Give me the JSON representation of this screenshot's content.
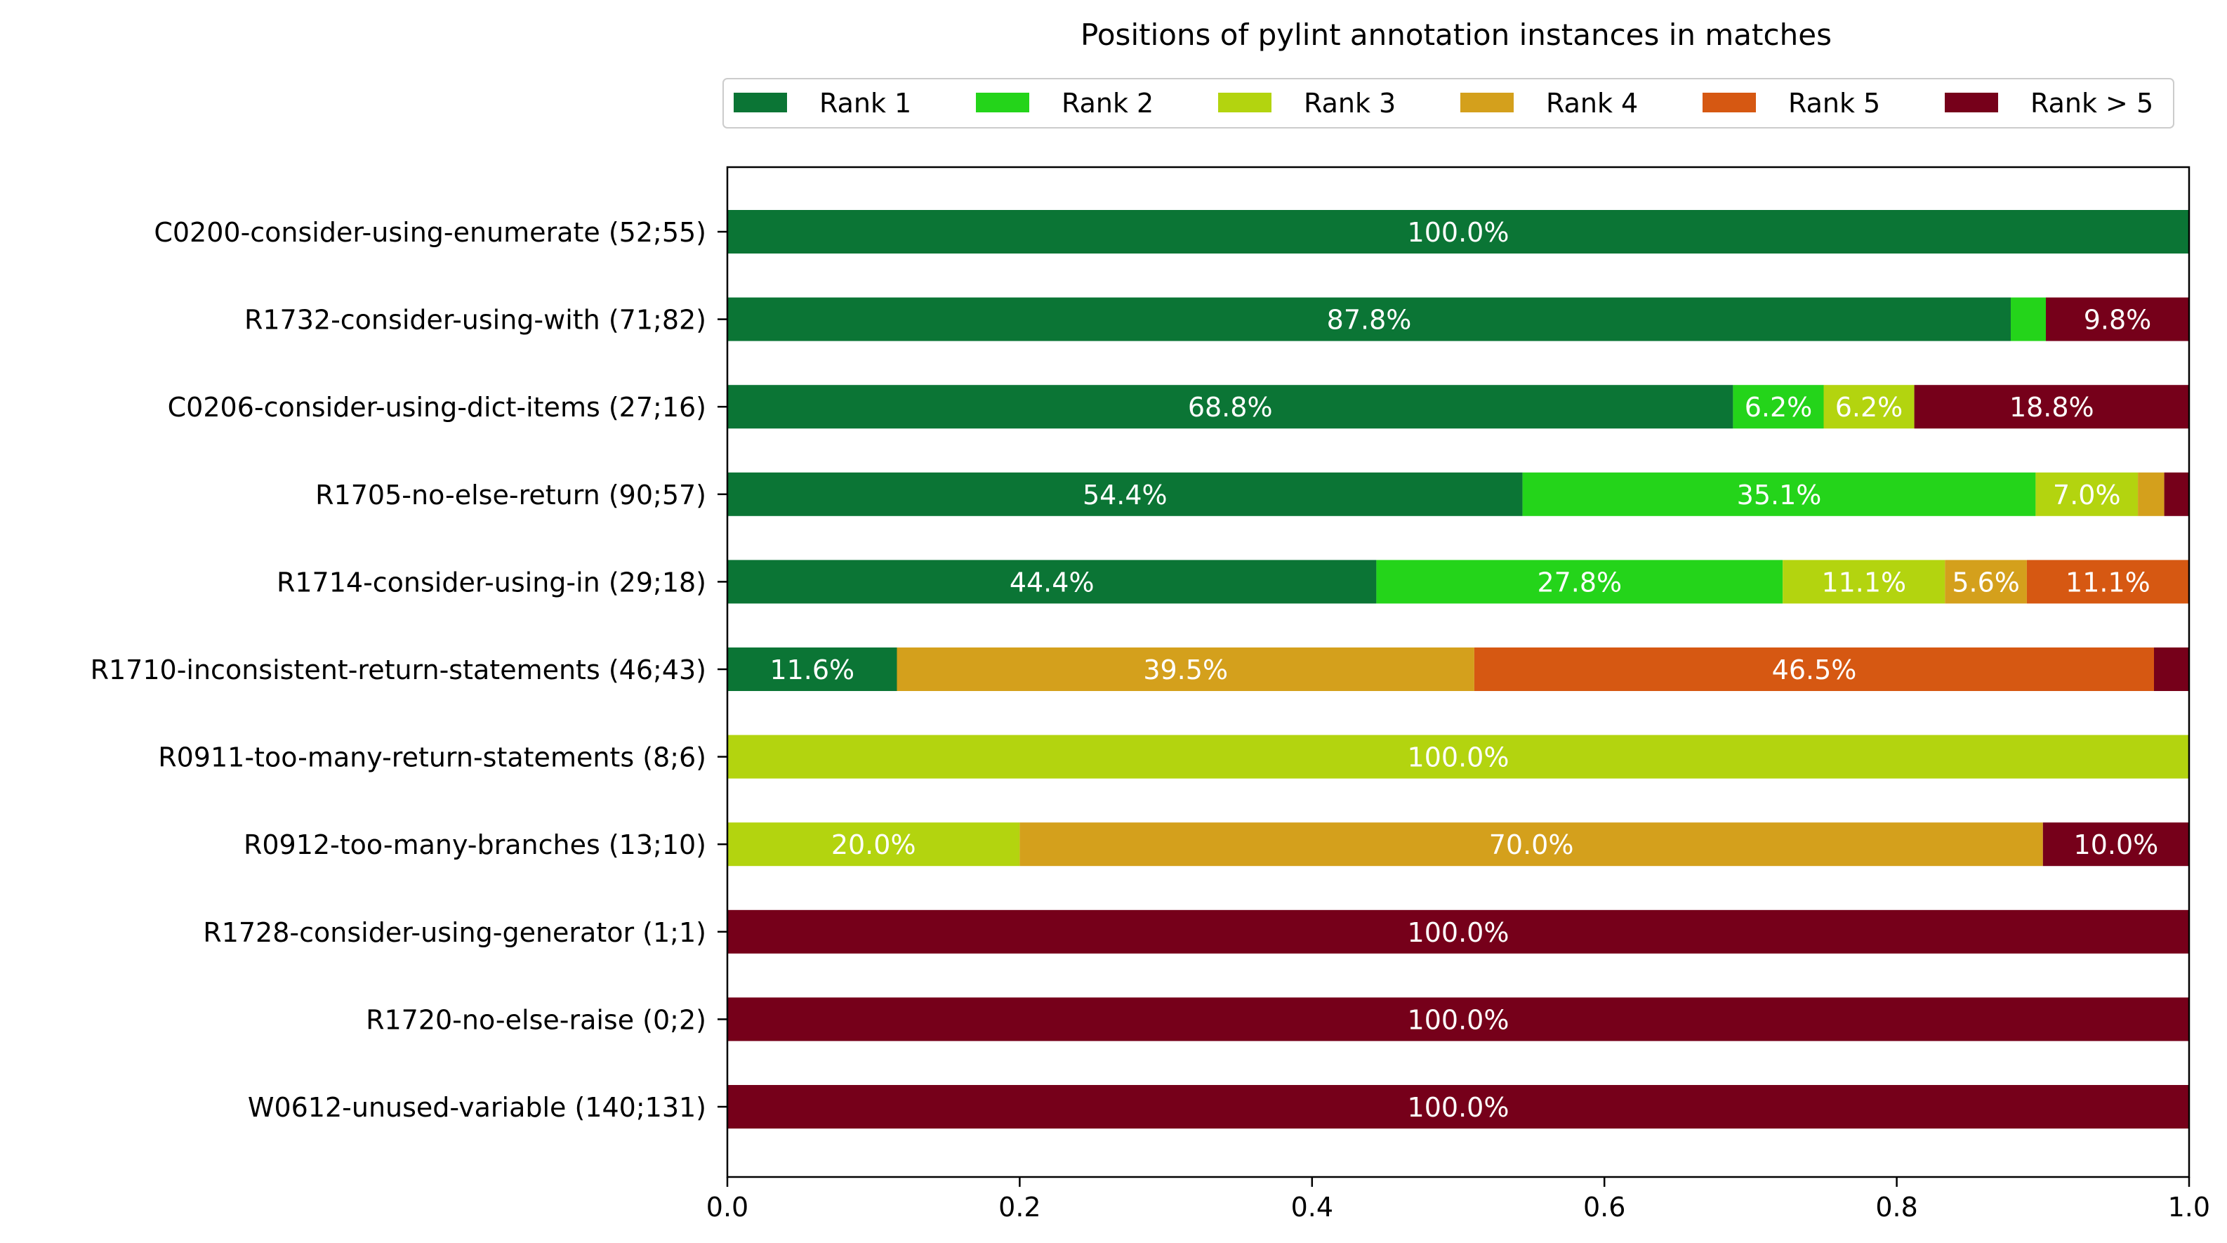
{
  "chart_data": {
    "type": "bar",
    "orientation": "horizontal",
    "stacked": true,
    "title": "Positions of pylint annotation instances in matches",
    "xlabel": "",
    "ylabel": "",
    "xlim": [
      0.0,
      1.0
    ],
    "xticks": [
      "0.0",
      "0.2",
      "0.4",
      "0.6",
      "0.8",
      "1.0"
    ],
    "legend_position": "top",
    "categories": [
      "C0200-consider-using-enumerate (52;55)",
      "R1732-consider-using-with (71;82)",
      "C0206-consider-using-dict-items (27;16)",
      "R1705-no-else-return (90;57)",
      "R1714-consider-using-in (29;18)",
      "R1710-inconsistent-return-statements (46;43)",
      "R0911-too-many-return-statements (8;6)",
      "R0912-too-many-branches (13;10)",
      "R1728-consider-using-generator (1;1)",
      "R1720-no-else-raise (0;2)",
      "W0612-unused-variable (140;131)"
    ],
    "series": [
      {
        "name": "Rank 1",
        "color": "#0b7535",
        "values": [
          1.0,
          0.878,
          0.688,
          0.544,
          0.444,
          0.116,
          0,
          0,
          0,
          0,
          0
        ],
        "labels": [
          "100.0%",
          "87.8%",
          "68.8%",
          "54.4%",
          "44.4%",
          "11.6%",
          "",
          "",
          "",
          "",
          ""
        ]
      },
      {
        "name": "Rank 2",
        "color": "#24d41a",
        "values": [
          0,
          0.024,
          0.062,
          0.351,
          0.278,
          0,
          0,
          0,
          0,
          0,
          0
        ],
        "labels": [
          "",
          "",
          "6.2%",
          "35.1%",
          "27.8%",
          "",
          "",
          "",
          "",
          "",
          ""
        ]
      },
      {
        "name": "Rank 3",
        "color": "#b3d40f",
        "values": [
          0,
          0,
          0.062,
          0.07,
          0.111,
          0,
          1.0,
          0.2,
          0,
          0,
          0
        ],
        "labels": [
          "",
          "",
          "6.2%",
          "7.0%",
          "11.1%",
          "",
          "100.0%",
          "20.0%",
          "",
          "",
          ""
        ]
      },
      {
        "name": "Rank 4",
        "color": "#d4a01c",
        "values": [
          0,
          0,
          0,
          0.018,
          0.056,
          0.395,
          0,
          0.7,
          0,
          0,
          0
        ],
        "labels": [
          "",
          "",
          "",
          "",
          "5.6%",
          "39.5%",
          "",
          "70.0%",
          "",
          "",
          ""
        ]
      },
      {
        "name": "Rank 5",
        "color": "#d65812",
        "values": [
          0,
          0,
          0,
          0,
          0.111,
          0.465,
          0,
          0,
          0,
          0,
          0
        ],
        "labels": [
          "",
          "",
          "",
          "",
          "11.1%",
          "46.5%",
          "",
          "",
          "",
          "",
          ""
        ]
      },
      {
        "name": "Rank > 5",
        "color": "#76001a",
        "values": [
          0,
          0.098,
          0.188,
          0.017,
          0,
          0.024,
          0,
          0.1,
          1.0,
          1.0,
          1.0
        ],
        "labels": [
          "",
          "9.8%",
          "18.8%",
          "",
          "",
          "",
          "",
          "10.0%",
          "100.0%",
          "100.0%",
          "100.0%"
        ]
      }
    ]
  }
}
